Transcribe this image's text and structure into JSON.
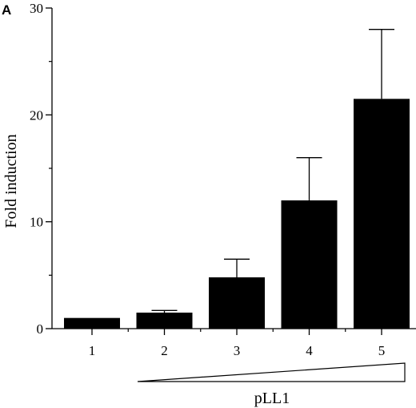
{
  "panel_label": "A",
  "chart_data": {
    "type": "bar",
    "categories": [
      "1",
      "2",
      "3",
      "4",
      "5"
    ],
    "values": [
      1.0,
      1.5,
      4.8,
      12.0,
      21.5
    ],
    "error_upper": [
      1.0,
      1.7,
      6.5,
      16.0,
      28.0
    ],
    "title": "",
    "xlabel": "pLL1",
    "ylabel": "Fold induction",
    "ylim": [
      0,
      30
    ],
    "yticks": [
      0,
      10,
      20,
      30
    ],
    "grid": false,
    "legend": "none",
    "bar_color": "#000000"
  }
}
